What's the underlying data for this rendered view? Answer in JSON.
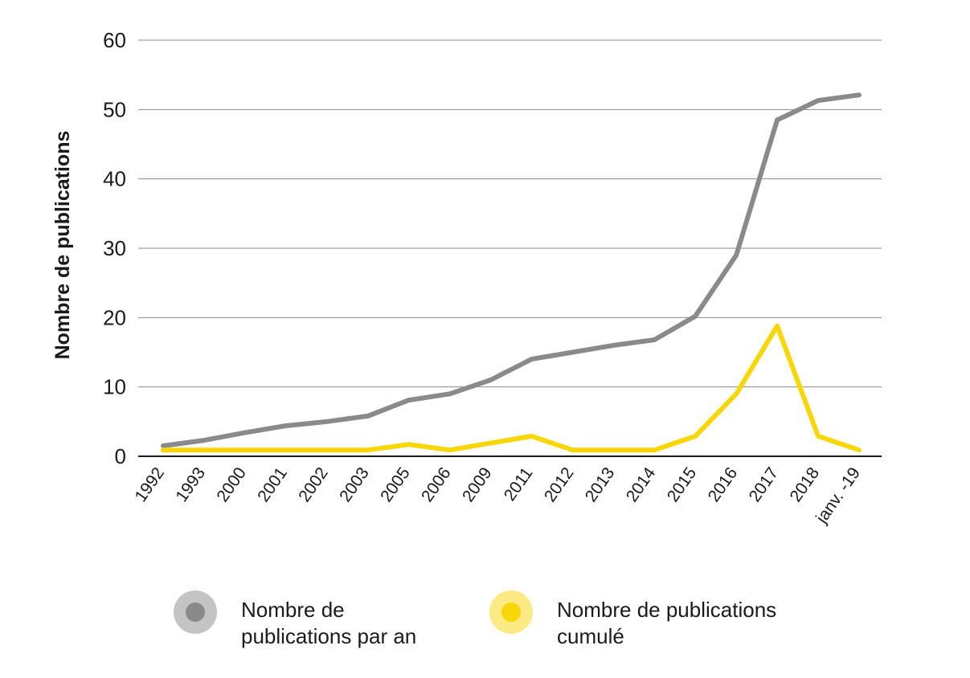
{
  "chart_data": {
    "type": "line",
    "title": "",
    "xlabel": "",
    "ylabel": "Nombre de publications",
    "categories": [
      "1992",
      "1993",
      "2000",
      "2001",
      "2002",
      "2003",
      "2005",
      "2006",
      "2009",
      "2011",
      "2012",
      "2013",
      "2014",
      "2015",
      "2016",
      "2017",
      "2018",
      "janv. -19"
    ],
    "y_ticks": [
      "0",
      "10",
      "20",
      "30",
      "40",
      "50",
      "60"
    ],
    "ylim": [
      0,
      60
    ],
    "grid": true,
    "legend_position": "bottom",
    "series": [
      {
        "name": "Nombre de publications par an",
        "color": "#8a8a8a",
        "halo_color": "#c4c4c4",
        "values": [
          1.5,
          2.3,
          3.4,
          4.4,
          5.0,
          5.8,
          8.1,
          9.0,
          11.0,
          14.0,
          15.0,
          16.0,
          16.8,
          20.2,
          29.0,
          48.5,
          51.3,
          52.1
        ]
      },
      {
        "name": "Nombre de publications cumulé",
        "color": "#f9d607",
        "halo_color": "#fcea85",
        "values": [
          0.9,
          0.9,
          0.9,
          0.9,
          0.9,
          0.9,
          1.7,
          0.9,
          1.9,
          2.9,
          0.9,
          0.9,
          0.9,
          2.9,
          9.0,
          18.8,
          2.9,
          0.9
        ]
      }
    ]
  },
  "legend": {
    "items": [
      {
        "line1": "Nombre de",
        "line2": "publications par an"
      },
      {
        "line1": "Nombre de publications",
        "line2": "cumulé"
      }
    ]
  }
}
